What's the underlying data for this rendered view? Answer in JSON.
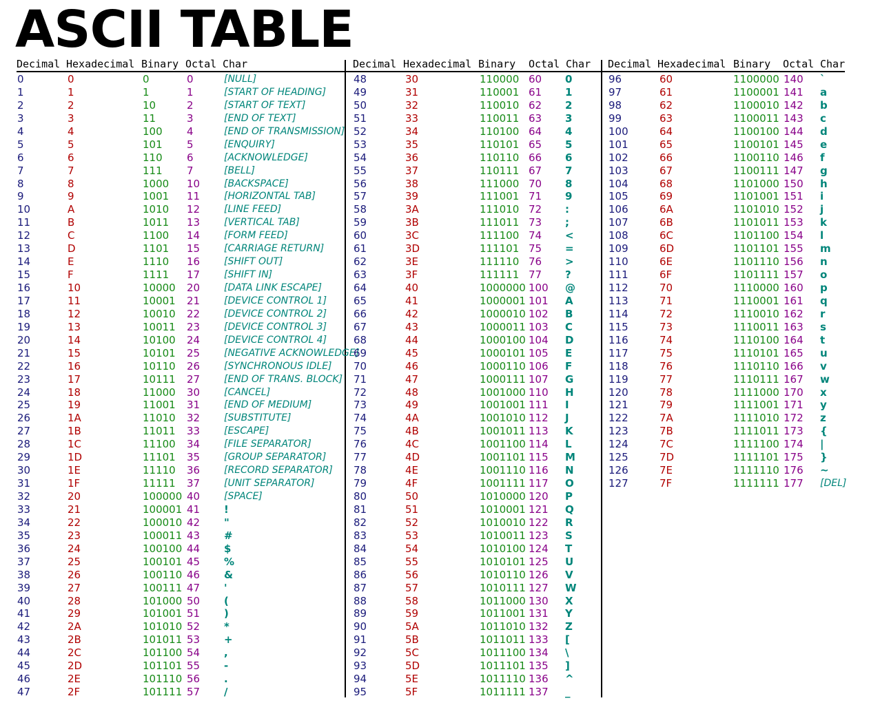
{
  "title": "ASCII TABLE",
  "headers": [
    "Decimal",
    "Hexadecimal",
    "Binary",
    "Octal",
    "Char"
  ],
  "columns": [
    [
      [
        "0",
        "0",
        "0",
        "0",
        "[NULL]",
        1
      ],
      [
        "1",
        "1",
        "1",
        "1",
        "[START OF HEADING]",
        1
      ],
      [
        "2",
        "2",
        "10",
        "2",
        "[START OF TEXT]",
        1
      ],
      [
        "3",
        "3",
        "11",
        "3",
        "[END OF TEXT]",
        1
      ],
      [
        "4",
        "4",
        "100",
        "4",
        "[END OF TRANSMISSION]",
        1
      ],
      [
        "5",
        "5",
        "101",
        "5",
        "[ENQUIRY]",
        1
      ],
      [
        "6",
        "6",
        "110",
        "6",
        "[ACKNOWLEDGE]",
        1
      ],
      [
        "7",
        "7",
        "111",
        "7",
        "[BELL]",
        1
      ],
      [
        "8",
        "8",
        "1000",
        "10",
        "[BACKSPACE]",
        1
      ],
      [
        "9",
        "9",
        "1001",
        "11",
        "[HORIZONTAL TAB]",
        1
      ],
      [
        "10",
        "A",
        "1010",
        "12",
        "[LINE FEED]",
        1
      ],
      [
        "11",
        "B",
        "1011",
        "13",
        "[VERTICAL TAB]",
        1
      ],
      [
        "12",
        "C",
        "1100",
        "14",
        "[FORM FEED]",
        1
      ],
      [
        "13",
        "D",
        "1101",
        "15",
        "[CARRIAGE RETURN]",
        1
      ],
      [
        "14",
        "E",
        "1110",
        "16",
        "[SHIFT OUT]",
        1
      ],
      [
        "15",
        "F",
        "1111",
        "17",
        "[SHIFT IN]",
        1
      ],
      [
        "16",
        "10",
        "10000",
        "20",
        "[DATA LINK ESCAPE]",
        1
      ],
      [
        "17",
        "11",
        "10001",
        "21",
        "[DEVICE CONTROL 1]",
        1
      ],
      [
        "18",
        "12",
        "10010",
        "22",
        "[DEVICE CONTROL 2]",
        1
      ],
      [
        "19",
        "13",
        "10011",
        "23",
        "[DEVICE CONTROL 3]",
        1
      ],
      [
        "20",
        "14",
        "10100",
        "24",
        "[DEVICE CONTROL 4]",
        1
      ],
      [
        "21",
        "15",
        "10101",
        "25",
        "[NEGATIVE ACKNOWLEDGE]",
        1
      ],
      [
        "22",
        "16",
        "10110",
        "26",
        "[SYNCHRONOUS IDLE]",
        1
      ],
      [
        "23",
        "17",
        "10111",
        "27",
        "[END OF TRANS. BLOCK]",
        1
      ],
      [
        "24",
        "18",
        "11000",
        "30",
        "[CANCEL]",
        1
      ],
      [
        "25",
        "19",
        "11001",
        "31",
        "[END OF MEDIUM]",
        1
      ],
      [
        "26",
        "1A",
        "11010",
        "32",
        "[SUBSTITUTE]",
        1
      ],
      [
        "27",
        "1B",
        "11011",
        "33",
        "[ESCAPE]",
        1
      ],
      [
        "28",
        "1C",
        "11100",
        "34",
        "[FILE SEPARATOR]",
        1
      ],
      [
        "29",
        "1D",
        "11101",
        "35",
        "[GROUP SEPARATOR]",
        1
      ],
      [
        "30",
        "1E",
        "11110",
        "36",
        "[RECORD SEPARATOR]",
        1
      ],
      [
        "31",
        "1F",
        "11111",
        "37",
        "[UNIT SEPARATOR]",
        1
      ],
      [
        "32",
        "20",
        "100000",
        "40",
        "[SPACE]",
        1
      ],
      [
        "33",
        "21",
        "100001",
        "41",
        "!",
        0
      ],
      [
        "34",
        "22",
        "100010",
        "42",
        "\"",
        0
      ],
      [
        "35",
        "23",
        "100011",
        "43",
        "#",
        0
      ],
      [
        "36",
        "24",
        "100100",
        "44",
        "$",
        0
      ],
      [
        "37",
        "25",
        "100101",
        "45",
        "%",
        0
      ],
      [
        "38",
        "26",
        "100110",
        "46",
        "&",
        0
      ],
      [
        "39",
        "27",
        "100111",
        "47",
        "'",
        0
      ],
      [
        "40",
        "28",
        "101000",
        "50",
        "(",
        0
      ],
      [
        "41",
        "29",
        "101001",
        "51",
        ")",
        0
      ],
      [
        "42",
        "2A",
        "101010",
        "52",
        "*",
        0
      ],
      [
        "43",
        "2B",
        "101011",
        "53",
        "+",
        0
      ],
      [
        "44",
        "2C",
        "101100",
        "54",
        ",",
        0
      ],
      [
        "45",
        "2D",
        "101101",
        "55",
        "-",
        0
      ],
      [
        "46",
        "2E",
        "101110",
        "56",
        ".",
        0
      ],
      [
        "47",
        "2F",
        "101111",
        "57",
        "/",
        0
      ]
    ],
    [
      [
        "48",
        "30",
        "110000",
        "60",
        "0",
        0
      ],
      [
        "49",
        "31",
        "110001",
        "61",
        "1",
        0
      ],
      [
        "50",
        "32",
        "110010",
        "62",
        "2",
        0
      ],
      [
        "51",
        "33",
        "110011",
        "63",
        "3",
        0
      ],
      [
        "52",
        "34",
        "110100",
        "64",
        "4",
        0
      ],
      [
        "53",
        "35",
        "110101",
        "65",
        "5",
        0
      ],
      [
        "54",
        "36",
        "110110",
        "66",
        "6",
        0
      ],
      [
        "55",
        "37",
        "110111",
        "67",
        "7",
        0
      ],
      [
        "56",
        "38",
        "111000",
        "70",
        "8",
        0
      ],
      [
        "57",
        "39",
        "111001",
        "71",
        "9",
        0
      ],
      [
        "58",
        "3A",
        "111010",
        "72",
        ":",
        0
      ],
      [
        "59",
        "3B",
        "111011",
        "73",
        ";",
        0
      ],
      [
        "60",
        "3C",
        "111100",
        "74",
        "<",
        0
      ],
      [
        "61",
        "3D",
        "111101",
        "75",
        "=",
        0
      ],
      [
        "62",
        "3E",
        "111110",
        "76",
        ">",
        0
      ],
      [
        "63",
        "3F",
        "111111",
        "77",
        "?",
        0
      ],
      [
        "64",
        "40",
        "1000000",
        "100",
        "@",
        0
      ],
      [
        "65",
        "41",
        "1000001",
        "101",
        "A",
        0
      ],
      [
        "66",
        "42",
        "1000010",
        "102",
        "B",
        0
      ],
      [
        "67",
        "43",
        "1000011",
        "103",
        "C",
        0
      ],
      [
        "68",
        "44",
        "1000100",
        "104",
        "D",
        0
      ],
      [
        "69",
        "45",
        "1000101",
        "105",
        "E",
        0
      ],
      [
        "70",
        "46",
        "1000110",
        "106",
        "F",
        0
      ],
      [
        "71",
        "47",
        "1000111",
        "107",
        "G",
        0
      ],
      [
        "72",
        "48",
        "1001000",
        "110",
        "H",
        0
      ],
      [
        "73",
        "49",
        "1001001",
        "111",
        "I",
        0
      ],
      [
        "74",
        "4A",
        "1001010",
        "112",
        "J",
        0
      ],
      [
        "75",
        "4B",
        "1001011",
        "113",
        "K",
        0
      ],
      [
        "76",
        "4C",
        "1001100",
        "114",
        "L",
        0
      ],
      [
        "77",
        "4D",
        "1001101",
        "115",
        "M",
        0
      ],
      [
        "78",
        "4E",
        "1001110",
        "116",
        "N",
        0
      ],
      [
        "79",
        "4F",
        "1001111",
        "117",
        "O",
        0
      ],
      [
        "80",
        "50",
        "1010000",
        "120",
        "P",
        0
      ],
      [
        "81",
        "51",
        "1010001",
        "121",
        "Q",
        0
      ],
      [
        "82",
        "52",
        "1010010",
        "122",
        "R",
        0
      ],
      [
        "83",
        "53",
        "1010011",
        "123",
        "S",
        0
      ],
      [
        "84",
        "54",
        "1010100",
        "124",
        "T",
        0
      ],
      [
        "85",
        "55",
        "1010101",
        "125",
        "U",
        0
      ],
      [
        "86",
        "56",
        "1010110",
        "126",
        "V",
        0
      ],
      [
        "87",
        "57",
        "1010111",
        "127",
        "W",
        0
      ],
      [
        "88",
        "58",
        "1011000",
        "130",
        "X",
        0
      ],
      [
        "89",
        "59",
        "1011001",
        "131",
        "Y",
        0
      ],
      [
        "90",
        "5A",
        "1011010",
        "132",
        "Z",
        0
      ],
      [
        "91",
        "5B",
        "1011011",
        "133",
        "[",
        0
      ],
      [
        "92",
        "5C",
        "1011100",
        "134",
        "\\",
        0
      ],
      [
        "93",
        "5D",
        "1011101",
        "135",
        "]",
        0
      ],
      [
        "94",
        "5E",
        "1011110",
        "136",
        "^",
        0
      ],
      [
        "95",
        "5F",
        "1011111",
        "137",
        "_",
        0
      ]
    ],
    [
      [
        "96",
        "60",
        "1100000",
        "140",
        "`",
        0
      ],
      [
        "97",
        "61",
        "1100001",
        "141",
        "a",
        0
      ],
      [
        "98",
        "62",
        "1100010",
        "142",
        "b",
        0
      ],
      [
        "99",
        "63",
        "1100011",
        "143",
        "c",
        0
      ],
      [
        "100",
        "64",
        "1100100",
        "144",
        "d",
        0
      ],
      [
        "101",
        "65",
        "1100101",
        "145",
        "e",
        0
      ],
      [
        "102",
        "66",
        "1100110",
        "146",
        "f",
        0
      ],
      [
        "103",
        "67",
        "1100111",
        "147",
        "g",
        0
      ],
      [
        "104",
        "68",
        "1101000",
        "150",
        "h",
        0
      ],
      [
        "105",
        "69",
        "1101001",
        "151",
        "i",
        0
      ],
      [
        "106",
        "6A",
        "1101010",
        "152",
        "j",
        0
      ],
      [
        "107",
        "6B",
        "1101011",
        "153",
        "k",
        0
      ],
      [
        "108",
        "6C",
        "1101100",
        "154",
        "l",
        0
      ],
      [
        "109",
        "6D",
        "1101101",
        "155",
        "m",
        0
      ],
      [
        "110",
        "6E",
        "1101110",
        "156",
        "n",
        0
      ],
      [
        "111",
        "6F",
        "1101111",
        "157",
        "o",
        0
      ],
      [
        "112",
        "70",
        "1110000",
        "160",
        "p",
        0
      ],
      [
        "113",
        "71",
        "1110001",
        "161",
        "q",
        0
      ],
      [
        "114",
        "72",
        "1110010",
        "162",
        "r",
        0
      ],
      [
        "115",
        "73",
        "1110011",
        "163",
        "s",
        0
      ],
      [
        "116",
        "74",
        "1110100",
        "164",
        "t",
        0
      ],
      [
        "117",
        "75",
        "1110101",
        "165",
        "u",
        0
      ],
      [
        "118",
        "76",
        "1110110",
        "166",
        "v",
        0
      ],
      [
        "119",
        "77",
        "1110111",
        "167",
        "w",
        0
      ],
      [
        "120",
        "78",
        "1111000",
        "170",
        "x",
        0
      ],
      [
        "121",
        "79",
        "1111001",
        "171",
        "y",
        0
      ],
      [
        "122",
        "7A",
        "1111010",
        "172",
        "z",
        0
      ],
      [
        "123",
        "7B",
        "1111011",
        "173",
        "{",
        0
      ],
      [
        "124",
        "7C",
        "1111100",
        "174",
        "|",
        0
      ],
      [
        "125",
        "7D",
        "1111101",
        "175",
        "}",
        0
      ],
      [
        "126",
        "7E",
        "1111110",
        "176",
        "~",
        0
      ],
      [
        "127",
        "7F",
        "1111111",
        "177",
        "[DEL]",
        1
      ]
    ]
  ]
}
